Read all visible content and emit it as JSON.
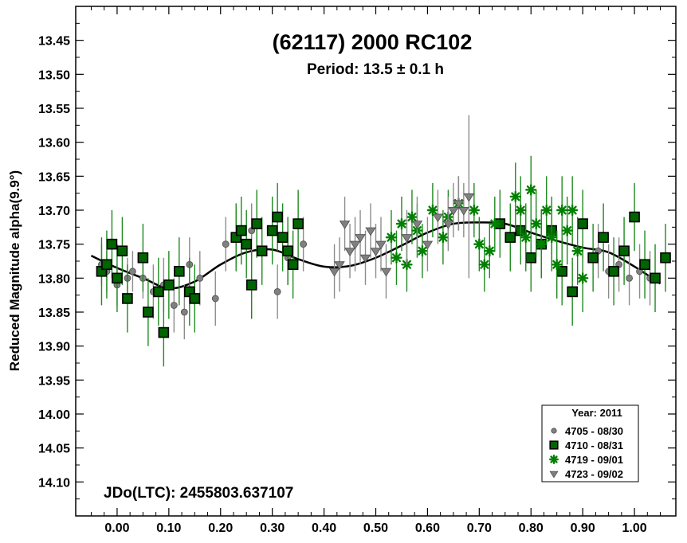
{
  "chart_data": {
    "type": "scatter",
    "title": "(62117) 2000 RC102",
    "subtitle": "Period: 13.5 ± 0.1 h",
    "xlabel": "",
    "ylabel": "Reduced Magnitude alpha(9.9°)",
    "annotation": "JDo(LTC): 2455803.637107",
    "xlim": [
      -0.08,
      1.08
    ],
    "ylim": [
      14.15,
      13.4
    ],
    "y_inverted": true,
    "x_ticks": [
      "0.00",
      "0.10",
      "0.20",
      "0.30",
      "0.40",
      "0.50",
      "0.60",
      "0.70",
      "0.80",
      "0.90",
      "1.00"
    ],
    "y_ticks": [
      "13.45",
      "13.50",
      "13.55",
      "13.60",
      "13.65",
      "13.70",
      "13.75",
      "13.80",
      "13.85",
      "13.90",
      "13.95",
      "14.00",
      "14.05",
      "14.10"
    ],
    "grid": false,
    "legend": {
      "position": "bottom-right",
      "title": "Year: 2011",
      "entries": [
        {
          "label": "4705 - 08/30",
          "marker": "circle",
          "color": "#808080"
        },
        {
          "label": "4710 - 08/31",
          "marker": "square",
          "color": "#006400"
        },
        {
          "label": "4719 - 09/01",
          "marker": "asterisk",
          "color": "#008000"
        },
        {
          "label": "4723 - 09/02",
          "marker": "triangle-down",
          "color": "#808080"
        }
      ]
    },
    "fit_curve": {
      "x": [
        -0.05,
        0.0,
        0.05,
        0.1,
        0.15,
        0.2,
        0.25,
        0.3,
        0.35,
        0.4,
        0.45,
        0.5,
        0.55,
        0.6,
        0.65,
        0.7,
        0.75,
        0.8,
        0.85,
        0.9,
        0.95,
        1.0,
        1.05
      ],
      "y": [
        13.767,
        13.785,
        13.8,
        13.815,
        13.805,
        13.78,
        13.762,
        13.758,
        13.772,
        13.783,
        13.782,
        13.77,
        13.752,
        13.733,
        13.72,
        13.718,
        13.72,
        13.733,
        13.745,
        13.755,
        13.762,
        13.783,
        13.808
      ]
    },
    "series": [
      {
        "name": "4705 - 08/30",
        "marker": "circle",
        "color": "#808080",
        "x": [
          -0.03,
          -0.02,
          0.0,
          0.02,
          0.03,
          0.05,
          0.07,
          0.09,
          0.11,
          0.13,
          0.14,
          0.16,
          0.19,
          0.21,
          0.23,
          0.26,
          0.28,
          0.31,
          0.33,
          0.36,
          0.93,
          0.95,
          0.97,
          0.99,
          1.01,
          1.03
        ],
        "y": [
          13.78,
          13.79,
          13.81,
          13.8,
          13.79,
          13.8,
          13.82,
          13.81,
          13.84,
          13.85,
          13.78,
          13.8,
          13.83,
          13.75,
          13.74,
          13.73,
          13.76,
          13.82,
          13.77,
          13.75,
          13.76,
          13.79,
          13.78,
          13.8,
          13.79,
          13.8
        ],
        "err": [
          0.03,
          0.03,
          0.03,
          0.03,
          0.03,
          0.03,
          0.04,
          0.04,
          0.04,
          0.04,
          0.04,
          0.04,
          0.04,
          0.04,
          0.04,
          0.04,
          0.04,
          0.04,
          0.04,
          0.04,
          0.04,
          0.04,
          0.04,
          0.04,
          0.04,
          0.04
        ]
      },
      {
        "name": "4710 - 08/31",
        "marker": "square",
        "color": "#006400",
        "x": [
          -0.03,
          -0.02,
          -0.01,
          0.0,
          0.01,
          0.02,
          0.05,
          0.06,
          0.08,
          0.09,
          0.1,
          0.12,
          0.14,
          0.15,
          0.23,
          0.24,
          0.25,
          0.26,
          0.27,
          0.28,
          0.3,
          0.31,
          0.32,
          0.33,
          0.34,
          0.35,
          0.74,
          0.76,
          0.78,
          0.8,
          0.82,
          0.84,
          0.86,
          0.88,
          0.9,
          0.92,
          0.94,
          0.96,
          0.98,
          1.0,
          1.02,
          1.04,
          1.06
        ],
        "y": [
          13.79,
          13.78,
          13.75,
          13.8,
          13.76,
          13.83,
          13.77,
          13.85,
          13.82,
          13.88,
          13.81,
          13.79,
          13.82,
          13.83,
          13.74,
          13.73,
          13.75,
          13.81,
          13.72,
          13.76,
          13.73,
          13.71,
          13.74,
          13.76,
          13.78,
          13.72,
          13.72,
          13.74,
          13.73,
          13.77,
          13.75,
          13.73,
          13.79,
          13.82,
          13.72,
          13.77,
          13.74,
          13.79,
          13.76,
          13.71,
          13.78,
          13.8,
          13.77
        ],
        "err": [
          0.05,
          0.05,
          0.05,
          0.05,
          0.05,
          0.05,
          0.05,
          0.05,
          0.05,
          0.05,
          0.05,
          0.05,
          0.05,
          0.05,
          0.05,
          0.05,
          0.05,
          0.05,
          0.05,
          0.05,
          0.05,
          0.05,
          0.05,
          0.05,
          0.05,
          0.05,
          0.05,
          0.05,
          0.05,
          0.05,
          0.05,
          0.05,
          0.05,
          0.05,
          0.05,
          0.05,
          0.05,
          0.05,
          0.05,
          0.05,
          0.05,
          0.05,
          0.05
        ]
      },
      {
        "name": "4719 - 09/01",
        "marker": "asterisk",
        "color": "#008000",
        "x": [
          0.53,
          0.54,
          0.55,
          0.56,
          0.57,
          0.58,
          0.59,
          0.61,
          0.63,
          0.64,
          0.66,
          0.69,
          0.7,
          0.71,
          0.72,
          0.73,
          0.77,
          0.78,
          0.79,
          0.8,
          0.81,
          0.82,
          0.83,
          0.84,
          0.85,
          0.86,
          0.87,
          0.88,
          0.89,
          0.9
        ],
        "y": [
          13.74,
          13.77,
          13.72,
          13.78,
          13.71,
          13.73,
          13.76,
          13.7,
          13.74,
          13.71,
          13.69,
          13.7,
          13.75,
          13.78,
          13.76,
          13.72,
          13.68,
          13.7,
          13.74,
          13.67,
          13.72,
          13.75,
          13.7,
          13.74,
          13.78,
          13.7,
          13.73,
          13.7,
          13.76,
          13.8
        ],
        "err": [
          0.04,
          0.04,
          0.04,
          0.04,
          0.04,
          0.04,
          0.04,
          0.04,
          0.04,
          0.04,
          0.04,
          0.04,
          0.04,
          0.04,
          0.04,
          0.04,
          0.05,
          0.05,
          0.05,
          0.05,
          0.05,
          0.05,
          0.05,
          0.05,
          0.05,
          0.05,
          0.05,
          0.05,
          0.05,
          0.05
        ]
      },
      {
        "name": "4723 - 09/02",
        "marker": "triangle-down",
        "color": "#808080",
        "x": [
          0.42,
          0.43,
          0.44,
          0.45,
          0.46,
          0.47,
          0.48,
          0.49,
          0.5,
          0.51,
          0.52,
          0.56,
          0.58,
          0.6,
          0.62,
          0.64,
          0.65,
          0.66,
          0.67,
          0.68
        ],
        "y": [
          13.79,
          13.78,
          13.72,
          13.76,
          13.75,
          13.74,
          13.77,
          13.73,
          13.76,
          13.75,
          13.79,
          13.74,
          13.72,
          13.75,
          13.71,
          13.72,
          13.7,
          13.69,
          13.7,
          13.68
        ],
        "err": [
          0.04,
          0.04,
          0.04,
          0.04,
          0.04,
          0.04,
          0.04,
          0.04,
          0.04,
          0.04,
          0.04,
          0.04,
          0.04,
          0.04,
          0.04,
          0.04,
          0.04,
          0.04,
          0.04,
          0.12
        ]
      }
    ]
  }
}
